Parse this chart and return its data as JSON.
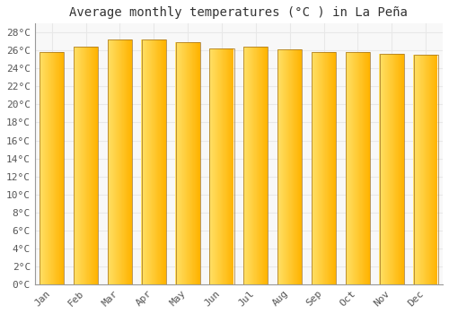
{
  "title": "Average monthly temperatures (°C ) in La Peña",
  "months": [
    "Jan",
    "Feb",
    "Mar",
    "Apr",
    "May",
    "Jun",
    "Jul",
    "Aug",
    "Sep",
    "Oct",
    "Nov",
    "Dec"
  ],
  "values": [
    25.8,
    26.4,
    27.2,
    27.2,
    26.9,
    26.2,
    26.4,
    26.1,
    25.8,
    25.8,
    25.6,
    25.5
  ],
  "bar_color_left": "#FFD740",
  "bar_color_right": "#FFA000",
  "bar_edge_color": "#A07020",
  "ylim": [
    0,
    29
  ],
  "ytick_step": 2,
  "background_color": "#ffffff",
  "plot_bg_color": "#f8f8f8",
  "grid_color": "#e8e8e8",
  "title_fontsize": 10,
  "tick_fontsize": 8
}
